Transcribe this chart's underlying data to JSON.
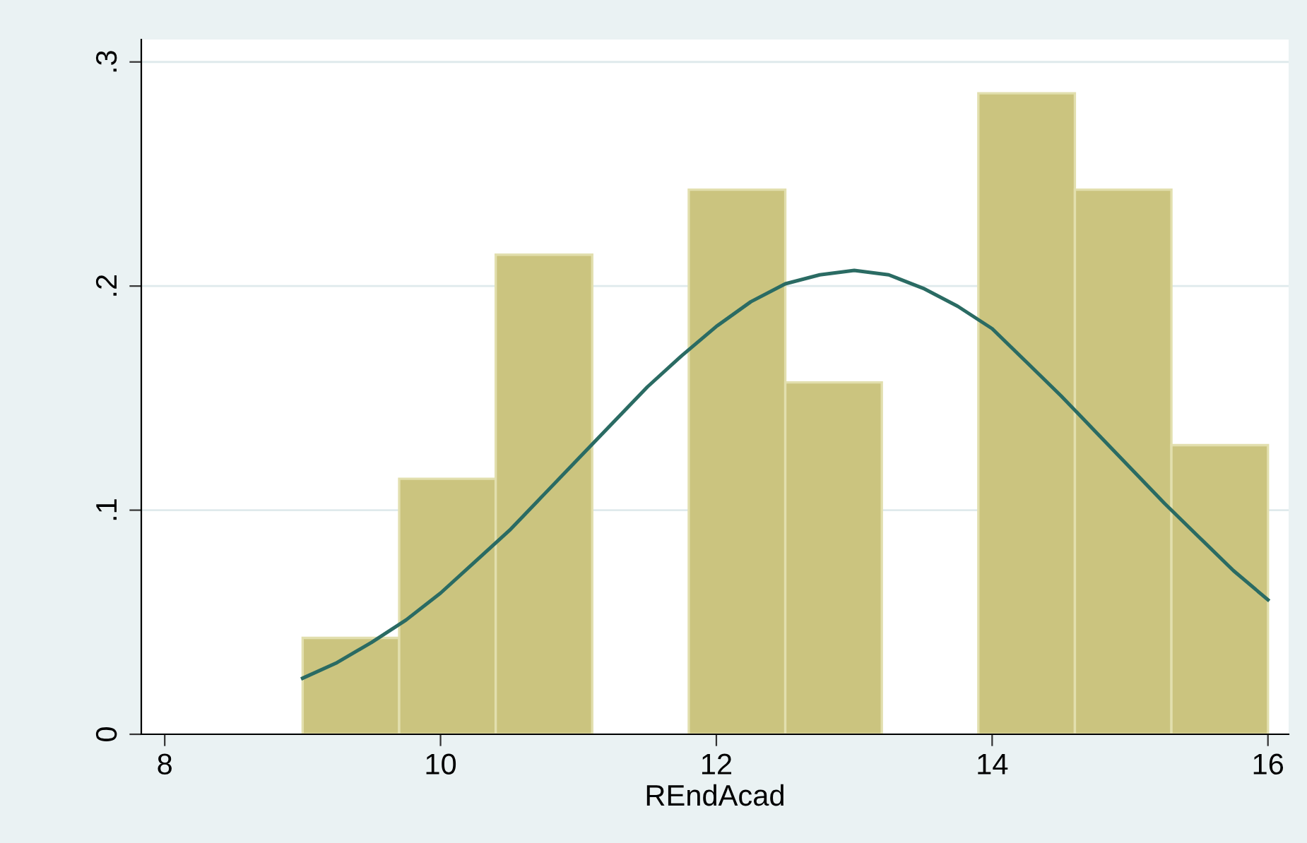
{
  "chart_data": {
    "type": "histogram",
    "xlabel": "REndAcad",
    "xlim": [
      7.83,
      16.15
    ],
    "xticks": [
      8,
      10,
      12,
      14,
      16
    ],
    "ylim": [
      0,
      0.31
    ],
    "yticks": [
      0,
      {
        "value": 0.1,
        "label": ".1"
      },
      {
        "value": 0.2,
        "label": ".2"
      },
      {
        "value": 0.3,
        "label": ".3"
      }
    ],
    "grid": "y",
    "series": [
      {
        "color": "#cbc47f",
        "bins": [
          9.0,
          9.7,
          10.4,
          11.1,
          11.8,
          12.5,
          13.2,
          13.9,
          14.6,
          15.3,
          16.0
        ],
        "values": [
          0.043,
          0.114,
          0.214,
          0,
          0.243,
          0.157,
          0,
          0.286,
          0.243,
          0.129
        ]
      },
      {
        "type": "line",
        "color": "#2a6b63",
        "x": [
          9,
          9.25,
          9.5,
          9.75,
          10,
          10.25,
          10.5,
          10.75,
          11,
          11.25,
          11.5,
          11.75,
          12,
          12.25,
          12.5,
          12.75,
          13,
          13.25,
          13.5,
          13.75,
          14,
          14.25,
          14.5,
          14.75,
          15,
          15.25,
          15.5,
          15.75,
          16
        ],
        "values": [
          0.025,
          0.032,
          0.041,
          0.051,
          0.063,
          0.077,
          0.091,
          0.107,
          0.123,
          0.139,
          0.155,
          0.169,
          0.182,
          0.193,
          0.201,
          0.205,
          0.207,
          0.205,
          0.199,
          0.191,
          0.181,
          0.166,
          0.151,
          0.135,
          0.119,
          0.103,
          0.088,
          0.073,
          0.06
        ]
      }
    ]
  }
}
